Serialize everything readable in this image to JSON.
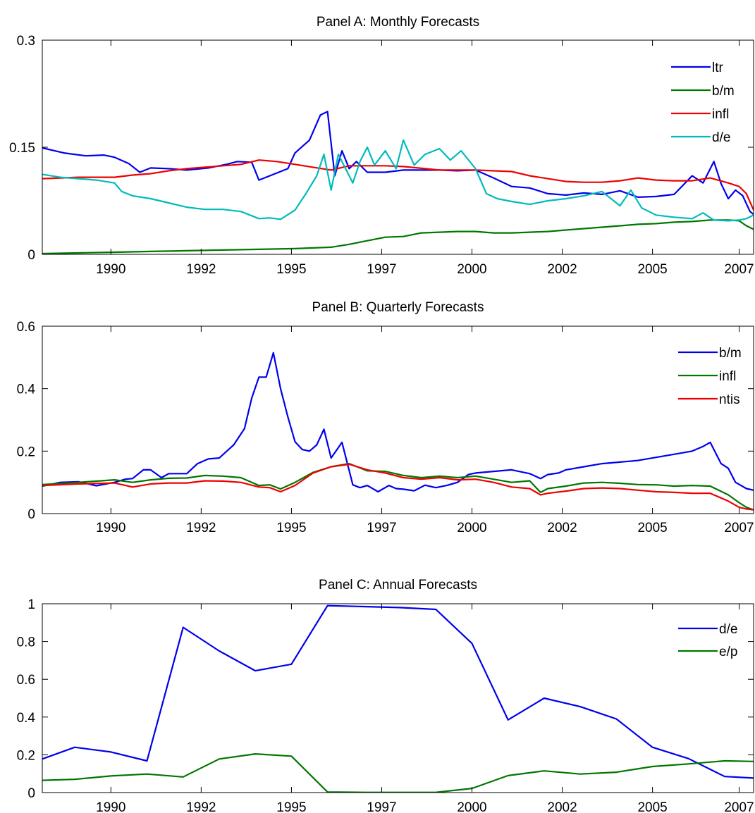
{
  "chart_data": [
    {
      "type": "line",
      "title": "Panel A: Monthly Forecasts",
      "xlabel": "",
      "ylabel": "",
      "xlim": [
        1988.0,
        2007.7
      ],
      "ylim": [
        0,
        0.3
      ],
      "xticks": [
        1989.9,
        1992.4,
        1994.9,
        1997.4,
        1999.9,
        2002.4,
        2004.9,
        2007.3
      ],
      "xtick_labels": [
        "1990",
        "1992",
        "1995",
        "1997",
        "2000",
        "2002",
        "2005",
        "2007"
      ],
      "yticks": [
        0,
        0.15,
        0.3
      ],
      "ytick_labels": [
        "0",
        "0.15",
        "0.3"
      ],
      "legend_position": "top-right",
      "grid": false,
      "series": [
        {
          "name": "ltr",
          "color": "#0000ee",
          "x": [
            1988.0,
            1988.6,
            1989.2,
            1989.7,
            1990.0,
            1990.4,
            1990.7,
            1991.0,
            1991.5,
            1992.0,
            1992.6,
            1993.1,
            1993.4,
            1993.8,
            1994.0,
            1994.4,
            1994.8,
            1995.0,
            1995.4,
            1995.7,
            1995.9,
            1996.1,
            1996.3,
            1996.5,
            1996.7,
            1997.0,
            1997.5,
            1998.0,
            1998.5,
            1999.0,
            1999.5,
            2000.0,
            2000.5,
            2001.0,
            2001.5,
            2002.0,
            2002.5,
            2003.0,
            2003.5,
            2004.0,
            2004.5,
            2005.0,
            2005.5,
            2006.0,
            2006.3,
            2006.6,
            2006.8,
            2007.0,
            2007.2,
            2007.4,
            2007.6,
            2007.7
          ],
          "y": [
            0.149,
            0.142,
            0.138,
            0.139,
            0.136,
            0.127,
            0.115,
            0.121,
            0.12,
            0.118,
            0.121,
            0.126,
            0.13,
            0.129,
            0.104,
            0.112,
            0.12,
            0.142,
            0.16,
            0.195,
            0.2,
            0.11,
            0.145,
            0.12,
            0.13,
            0.115,
            0.115,
            0.118,
            0.118,
            0.118,
            0.117,
            0.118,
            0.107,
            0.095,
            0.093,
            0.085,
            0.083,
            0.086,
            0.084,
            0.089,
            0.08,
            0.081,
            0.084,
            0.11,
            0.1,
            0.13,
            0.099,
            0.078,
            0.09,
            0.082,
            0.06,
            0.056
          ]
        },
        {
          "name": "b/m",
          "color": "#007700",
          "x": [
            1988.0,
            1989.0,
            1990.0,
            1991.0,
            1992.0,
            1993.0,
            1994.0,
            1995.0,
            1996.0,
            1996.5,
            1997.0,
            1997.5,
            1998.0,
            1998.5,
            1999.0,
            1999.5,
            2000.0,
            2000.5,
            2001.0,
            2001.5,
            2002.0,
            2002.5,
            2003.0,
            2003.5,
            2004.0,
            2004.5,
            2005.0,
            2005.5,
            2006.0,
            2006.5,
            2007.0,
            2007.3,
            2007.5,
            2007.7
          ],
          "y": [
            0.001,
            0.002,
            0.003,
            0.004,
            0.005,
            0.006,
            0.007,
            0.008,
            0.01,
            0.014,
            0.019,
            0.024,
            0.025,
            0.03,
            0.031,
            0.032,
            0.032,
            0.03,
            0.03,
            0.031,
            0.032,
            0.034,
            0.036,
            0.038,
            0.04,
            0.042,
            0.043,
            0.045,
            0.046,
            0.048,
            0.048,
            0.047,
            0.04,
            0.035
          ]
        },
        {
          "name": "infl",
          "color": "#ee0000",
          "x": [
            1988.0,
            1989.0,
            1990.0,
            1990.5,
            1991.0,
            1991.5,
            1992.0,
            1993.0,
            1993.5,
            1994.0,
            1994.5,
            1995.0,
            1995.5,
            1996.0,
            1996.5,
            1997.0,
            1997.5,
            1998.0,
            1999.0,
            2000.0,
            2001.0,
            2001.5,
            2002.0,
            2002.5,
            2003.0,
            2003.5,
            2004.0,
            2004.5,
            2005.0,
            2005.5,
            2006.0,
            2006.5,
            2007.0,
            2007.3,
            2007.5,
            2007.7
          ],
          "y": [
            0.106,
            0.108,
            0.108,
            0.111,
            0.113,
            0.117,
            0.12,
            0.124,
            0.126,
            0.132,
            0.13,
            0.126,
            0.122,
            0.118,
            0.124,
            0.124,
            0.124,
            0.123,
            0.118,
            0.118,
            0.116,
            0.11,
            0.106,
            0.102,
            0.101,
            0.101,
            0.103,
            0.107,
            0.104,
            0.103,
            0.103,
            0.107,
            0.1,
            0.095,
            0.085,
            0.062
          ]
        },
        {
          "name": "d/e",
          "color": "#00bbbb",
          "x": [
            1988.0,
            1988.5,
            1989.0,
            1989.5,
            1990.0,
            1990.2,
            1990.5,
            1991.0,
            1991.5,
            1992.0,
            1992.5,
            1993.0,
            1993.5,
            1994.0,
            1994.3,
            1994.6,
            1995.0,
            1995.3,
            1995.6,
            1995.8,
            1996.0,
            1996.2,
            1996.4,
            1996.6,
            1996.8,
            1997.0,
            1997.2,
            1997.5,
            1997.8,
            1998.0,
            1998.3,
            1998.6,
            1999.0,
            1999.3,
            1999.6,
            2000.0,
            2000.3,
            2000.6,
            2001.0,
            2001.5,
            2002.0,
            2002.5,
            2003.0,
            2003.5,
            2004.0,
            2004.3,
            2004.6,
            2005.0,
            2005.5,
            2006.0,
            2006.3,
            2006.6,
            2007.0,
            2007.3,
            2007.5,
            2007.7
          ],
          "y": [
            0.112,
            0.108,
            0.106,
            0.104,
            0.1,
            0.088,
            0.082,
            0.078,
            0.072,
            0.066,
            0.063,
            0.063,
            0.06,
            0.05,
            0.051,
            0.049,
            0.062,
            0.085,
            0.11,
            0.14,
            0.09,
            0.14,
            0.12,
            0.1,
            0.13,
            0.15,
            0.125,
            0.145,
            0.12,
            0.16,
            0.125,
            0.14,
            0.148,
            0.132,
            0.145,
            0.12,
            0.085,
            0.078,
            0.074,
            0.07,
            0.075,
            0.078,
            0.082,
            0.088,
            0.068,
            0.09,
            0.065,
            0.055,
            0.052,
            0.05,
            0.058,
            0.048,
            0.047,
            0.048,
            0.05,
            0.055
          ]
        }
      ]
    },
    {
      "type": "line",
      "title": "Panel B: Quarterly Forecasts",
      "xlabel": "",
      "ylabel": "",
      "xlim": [
        1988.0,
        2007.7
      ],
      "ylim": [
        0,
        0.6
      ],
      "xticks": [
        1989.9,
        1992.4,
        1994.9,
        1997.4,
        1999.9,
        2002.4,
        2004.9,
        2007.3
      ],
      "xtick_labels": [
        "1990",
        "1992",
        "1995",
        "1997",
        "2000",
        "2002",
        "2005",
        "2007"
      ],
      "yticks": [
        0,
        0.2,
        0.4,
        0.6
      ],
      "ytick_labels": [
        "0",
        "0.2",
        "0.4",
        "0.6"
      ],
      "legend_position": "top-right",
      "grid": false,
      "series": [
        {
          "name": "b/m",
          "color": "#0000ee",
          "x": [
            1988.0,
            1988.5,
            1989.0,
            1989.5,
            1990.0,
            1990.3,
            1990.5,
            1990.8,
            1991.0,
            1991.3,
            1991.5,
            1992.0,
            1992.3,
            1992.6,
            1992.9,
            1993.3,
            1993.6,
            1993.8,
            1994.0,
            1994.2,
            1994.4,
            1994.6,
            1994.8,
            1995.0,
            1995.2,
            1995.4,
            1995.6,
            1995.8,
            1996.0,
            1996.3,
            1996.6,
            1996.8,
            1997.0,
            1997.3,
            1997.6,
            1997.8,
            1998.0,
            1998.3,
            1998.6,
            1998.9,
            1999.2,
            1999.5,
            1999.8,
            2000.0,
            2000.5,
            2001.0,
            2001.5,
            2001.8,
            2002.0,
            2002.3,
            2002.5,
            2003.0,
            2003.5,
            2004.0,
            2004.5,
            2005.0,
            2005.5,
            2006.0,
            2006.3,
            2006.5,
            2006.8,
            2007.0,
            2007.2,
            2007.5,
            2007.7
          ],
          "y": [
            0.088,
            0.1,
            0.102,
            0.089,
            0.1,
            0.11,
            0.112,
            0.14,
            0.14,
            0.115,
            0.128,
            0.128,
            0.16,
            0.175,
            0.178,
            0.22,
            0.272,
            0.37,
            0.437,
            0.437,
            0.515,
            0.4,
            0.31,
            0.23,
            0.205,
            0.2,
            0.22,
            0.27,
            0.178,
            0.228,
            0.092,
            0.083,
            0.09,
            0.07,
            0.09,
            0.08,
            0.078,
            0.073,
            0.091,
            0.083,
            0.09,
            0.1,
            0.125,
            0.13,
            0.135,
            0.14,
            0.128,
            0.112,
            0.125,
            0.13,
            0.14,
            0.15,
            0.16,
            0.165,
            0.17,
            0.18,
            0.19,
            0.2,
            0.215,
            0.228,
            0.16,
            0.145,
            0.1,
            0.08,
            0.075
          ]
        },
        {
          "name": "infl",
          "color": "#007700",
          "x": [
            1988.0,
            1989.0,
            1990.0,
            1990.5,
            1991.0,
            1991.5,
            1992.0,
            1992.5,
            1993.0,
            1993.5,
            1994.0,
            1994.3,
            1994.6,
            1995.0,
            1995.5,
            1996.0,
            1996.5,
            1997.0,
            1997.5,
            1998.0,
            1998.5,
            1999.0,
            1999.5,
            2000.0,
            2000.5,
            2001.0,
            2001.5,
            2001.8,
            2002.0,
            2002.5,
            2003.0,
            2003.5,
            2004.0,
            2004.5,
            2005.0,
            2005.5,
            2006.0,
            2006.5,
            2007.0,
            2007.3,
            2007.5,
            2007.7
          ],
          "y": [
            0.093,
            0.1,
            0.108,
            0.1,
            0.108,
            0.113,
            0.114,
            0.122,
            0.12,
            0.115,
            0.09,
            0.092,
            0.079,
            0.1,
            0.132,
            0.15,
            0.16,
            0.137,
            0.135,
            0.122,
            0.115,
            0.12,
            0.115,
            0.12,
            0.11,
            0.1,
            0.105,
            0.068,
            0.08,
            0.088,
            0.098,
            0.1,
            0.097,
            0.093,
            0.092,
            0.088,
            0.09,
            0.088,
            0.06,
            0.035,
            0.02,
            0.012
          ]
        },
        {
          "name": "ntis",
          "color": "#ee0000",
          "x": [
            1988.0,
            1989.0,
            1990.0,
            1990.5,
            1991.0,
            1991.5,
            1992.0,
            1992.5,
            1993.0,
            1993.5,
            1994.0,
            1994.3,
            1994.6,
            1995.0,
            1995.5,
            1996.0,
            1996.5,
            1997.0,
            1997.5,
            1998.0,
            1998.5,
            1999.0,
            1999.5,
            2000.0,
            2000.5,
            2001.0,
            2001.5,
            2001.8,
            2002.0,
            2002.5,
            2003.0,
            2003.5,
            2004.0,
            2004.5,
            2005.0,
            2005.5,
            2006.0,
            2006.5,
            2007.0,
            2007.3,
            2007.5,
            2007.7
          ],
          "y": [
            0.09,
            0.095,
            0.098,
            0.085,
            0.095,
            0.098,
            0.098,
            0.105,
            0.104,
            0.1,
            0.085,
            0.083,
            0.07,
            0.09,
            0.13,
            0.15,
            0.158,
            0.14,
            0.13,
            0.115,
            0.11,
            0.115,
            0.108,
            0.11,
            0.1,
            0.085,
            0.08,
            0.06,
            0.065,
            0.072,
            0.08,
            0.082,
            0.08,
            0.075,
            0.07,
            0.068,
            0.065,
            0.065,
            0.04,
            0.02,
            0.015,
            0.012
          ]
        }
      ]
    },
    {
      "type": "line",
      "title": "Panel C: Annual Forecasts",
      "xlabel": "",
      "ylabel": "",
      "xlim": [
        1988.0,
        2007.7
      ],
      "ylim": [
        0,
        1
      ],
      "xticks": [
        1989.9,
        1992.4,
        1994.9,
        1997.4,
        1999.9,
        2002.4,
        2004.9,
        2007.3
      ],
      "xtick_labels": [
        "1990",
        "1992",
        "1995",
        "1997",
        "2000",
        "2002",
        "2005",
        "2007"
      ],
      "yticks": [
        0,
        0.2,
        0.4,
        0.6,
        0.8,
        1
      ],
      "ytick_labels": [
        "0",
        "0.2",
        "0.4",
        "0.6",
        "0.8",
        "1"
      ],
      "legend_position": "top-right",
      "grid": false,
      "series": [
        {
          "name": "d/e",
          "color": "#0000ee",
          "x": [
            1988.0,
            1988.9,
            1989.9,
            1990.9,
            1991.9,
            1992.9,
            1993.9,
            1994.9,
            1995.9,
            1996.9,
            1997.9,
            1998.9,
            1999.9,
            2000.9,
            2001.9,
            2002.9,
            2003.9,
            2004.9,
            2005.9,
            2006.9,
            2007.7
          ],
          "y": [
            0.178,
            0.24,
            0.215,
            0.168,
            0.875,
            0.75,
            0.645,
            0.68,
            0.99,
            0.985,
            0.98,
            0.97,
            0.79,
            0.385,
            0.5,
            0.455,
            0.39,
            0.24,
            0.18,
            0.085,
            0.077
          ]
        },
        {
          "name": "e/p",
          "color": "#007700",
          "x": [
            1988.0,
            1988.9,
            1989.9,
            1990.9,
            1991.9,
            1992.9,
            1993.9,
            1994.9,
            1995.9,
            1996.9,
            1997.9,
            1998.9,
            1999.9,
            2000.9,
            2001.9,
            2002.9,
            2003.9,
            2004.9,
            2005.9,
            2006.9,
            2007.7
          ],
          "y": [
            0.065,
            0.07,
            0.088,
            0.098,
            0.083,
            0.178,
            0.205,
            0.193,
            0.003,
            0.001,
            0.001,
            0.001,
            0.022,
            0.09,
            0.115,
            0.098,
            0.108,
            0.138,
            0.152,
            0.168,
            0.165
          ]
        }
      ]
    }
  ]
}
